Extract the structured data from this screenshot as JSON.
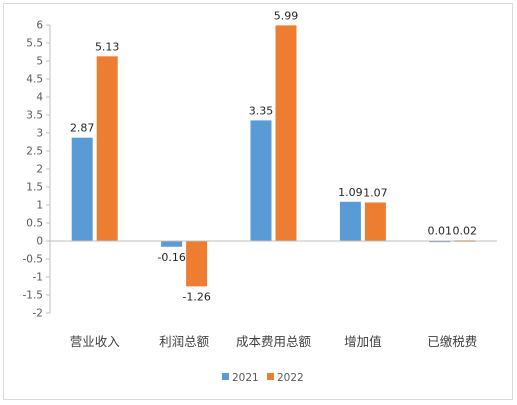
{
  "chart_data": {
    "type": "bar",
    "categories": [
      "营业收入",
      "利润总额",
      "成本费用总额",
      "增加值",
      "已缴税费"
    ],
    "series": [
      {
        "name": "2021",
        "values": [
          2.87,
          -0.16,
          3.35,
          1.09,
          0.01
        ],
        "labels": [
          "2.87",
          "-0.16",
          "3.35",
          "1.09",
          "0.01"
        ],
        "color": "#5b9bd5"
      },
      {
        "name": "2022",
        "values": [
          5.13,
          -1.26,
          5.99,
          1.07,
          0.02
        ],
        "labels": [
          "5.13",
          "-1.26",
          "5.99",
          "1.07",
          "0.02"
        ],
        "color": "#ed7d31"
      }
    ],
    "ylim": [
      -2,
      6
    ],
    "yticks": [
      6,
      5.5,
      5,
      4.5,
      4,
      3.5,
      3,
      2.5,
      2,
      1.5,
      1,
      0.5,
      0,
      -0.5,
      -1,
      -1.5,
      -2
    ],
    "ytick_labels": [
      "6",
      "5.5",
      "5",
      "4.5",
      "4",
      "3.5",
      "3",
      "2.5",
      "2",
      "1.5",
      "1",
      "0.5",
      "0",
      "-0.5",
      "-1",
      "-1.5",
      "-2"
    ],
    "legend_position": "bottom",
    "grid": false
  }
}
